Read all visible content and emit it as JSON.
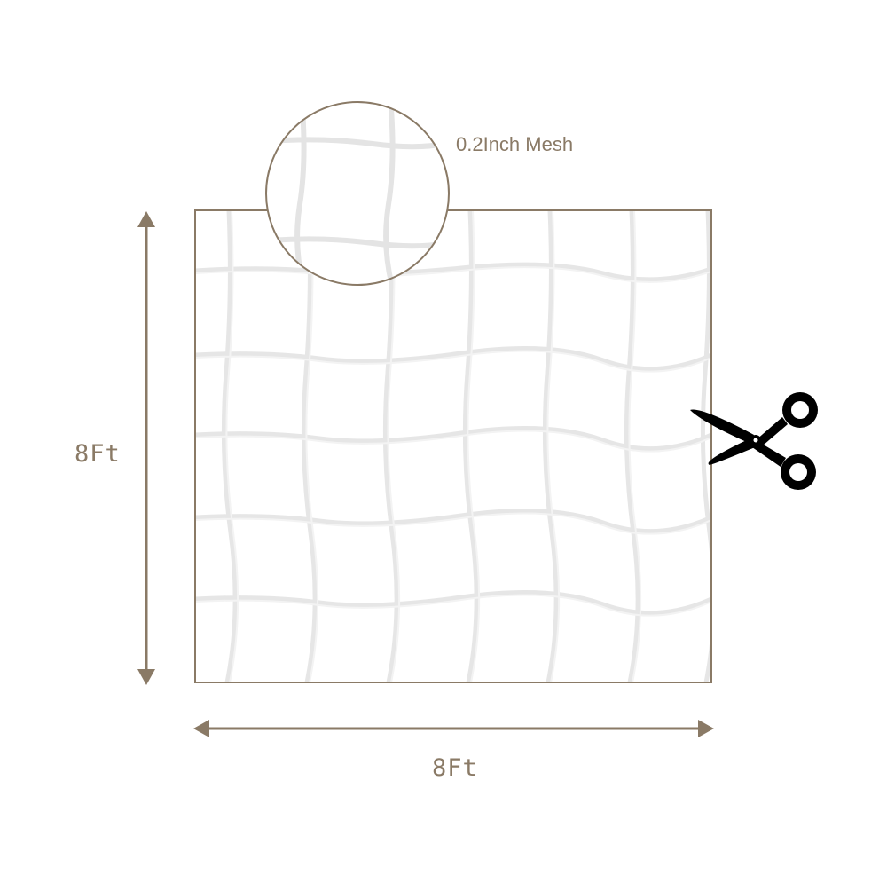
{
  "labels": {
    "height": "8Ft",
    "width": "8Ft",
    "mesh_size": "0.2Inch Mesh"
  },
  "colors": {
    "outline": "#8a7a66",
    "net": "#ececec",
    "scissors": "#000000",
    "background": "#ffffff"
  },
  "icons": {
    "cut": "scissors-icon",
    "height_arrow": "double-arrow-vertical",
    "width_arrow": "double-arrow-horizontal"
  }
}
